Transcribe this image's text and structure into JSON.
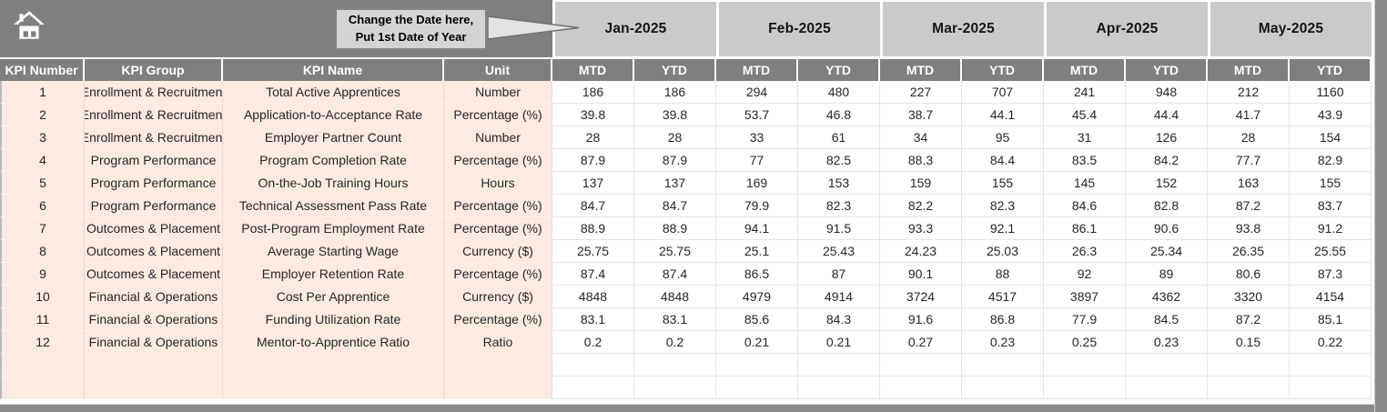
{
  "callout": {
    "line1": "Change the Date here,",
    "line2": "Put 1st Date of Year"
  },
  "columns": [
    "KPI Number",
    "KPI Group",
    "KPI Name",
    "Unit"
  ],
  "months": [
    "Jan-2025",
    "Feb-2025",
    "Mar-2025",
    "Apr-2025",
    "May-2025"
  ],
  "sub_columns": [
    "MTD",
    "YTD"
  ],
  "icons": {
    "home": "home-icon"
  },
  "colors": {
    "header_dark": "#7f7f7f",
    "month_header_gray": "#cacaca",
    "row_accent_peach": "#fdeae1",
    "frame_gray": "#8a8a8a",
    "callout_fill": "#d4d4d4",
    "callout_border": "#848484"
  },
  "empty_rows": 2,
  "rows": [
    {
      "number": "1",
      "group": "Enrollment & Recruitment",
      "name": "Total Active Apprentices",
      "unit": "Number",
      "values": [
        "186",
        "186",
        "294",
        "480",
        "227",
        "707",
        "241",
        "948",
        "212",
        "1160"
      ]
    },
    {
      "number": "2",
      "group": "Enrollment & Recruitment",
      "name": "Application-to-Acceptance Rate",
      "unit": "Percentage (%)",
      "values": [
        "39.8",
        "39.8",
        "53.7",
        "46.8",
        "38.7",
        "44.1",
        "45.4",
        "44.4",
        "41.7",
        "43.9"
      ]
    },
    {
      "number": "3",
      "group": "Enrollment & Recruitment",
      "name": "Employer Partner Count",
      "unit": "Number",
      "values": [
        "28",
        "28",
        "33",
        "61",
        "34",
        "95",
        "31",
        "126",
        "28",
        "154"
      ]
    },
    {
      "number": "4",
      "group": "Program Performance",
      "name": "Program Completion Rate",
      "unit": "Percentage (%)",
      "values": [
        "87.9",
        "87.9",
        "77",
        "82.5",
        "88.3",
        "84.4",
        "83.5",
        "84.2",
        "77.7",
        "82.9"
      ]
    },
    {
      "number": "5",
      "group": "Program Performance",
      "name": "On-the-Job Training Hours",
      "unit": "Hours",
      "values": [
        "137",
        "137",
        "169",
        "153",
        "159",
        "155",
        "145",
        "152",
        "163",
        "155"
      ]
    },
    {
      "number": "6",
      "group": "Program Performance",
      "name": "Technical Assessment Pass Rate",
      "unit": "Percentage (%)",
      "values": [
        "84.7",
        "84.7",
        "79.9",
        "82.3",
        "82.2",
        "82.3",
        "84.6",
        "82.8",
        "87.2",
        "83.7"
      ]
    },
    {
      "number": "7",
      "group": "Outcomes & Placement",
      "name": "Post-Program Employment Rate",
      "unit": "Percentage (%)",
      "values": [
        "88.9",
        "88.9",
        "94.1",
        "91.5",
        "93.3",
        "92.1",
        "86.1",
        "90.6",
        "93.8",
        "91.2"
      ]
    },
    {
      "number": "8",
      "group": "Outcomes & Placement",
      "name": "Average Starting Wage",
      "unit": "Currency ($)",
      "values": [
        "25.75",
        "25.75",
        "25.1",
        "25.43",
        "24.23",
        "25.03",
        "26.3",
        "25.34",
        "26.35",
        "25.55"
      ]
    },
    {
      "number": "9",
      "group": "Outcomes & Placement",
      "name": "Employer Retention Rate",
      "unit": "Percentage (%)",
      "values": [
        "87.4",
        "87.4",
        "86.5",
        "87",
        "90.1",
        "88",
        "92",
        "89",
        "80.6",
        "87.3"
      ]
    },
    {
      "number": "10",
      "group": "Financial & Operations",
      "name": "Cost Per Apprentice",
      "unit": "Currency ($)",
      "values": [
        "4848",
        "4848",
        "4979",
        "4914",
        "3724",
        "4517",
        "3897",
        "4362",
        "3320",
        "4154"
      ]
    },
    {
      "number": "11",
      "group": "Financial & Operations",
      "name": "Funding Utilization Rate",
      "unit": "Percentage (%)",
      "values": [
        "83.1",
        "83.1",
        "85.6",
        "84.3",
        "91.6",
        "86.8",
        "77.9",
        "84.5",
        "87.2",
        "85.1"
      ]
    },
    {
      "number": "12",
      "group": "Financial & Operations",
      "name": "Mentor-to-Apprentice Ratio",
      "unit": "Ratio",
      "values": [
        "0.2",
        "0.2",
        "0.21",
        "0.21",
        "0.27",
        "0.23",
        "0.25",
        "0.23",
        "0.15",
        "0.22"
      ]
    }
  ]
}
